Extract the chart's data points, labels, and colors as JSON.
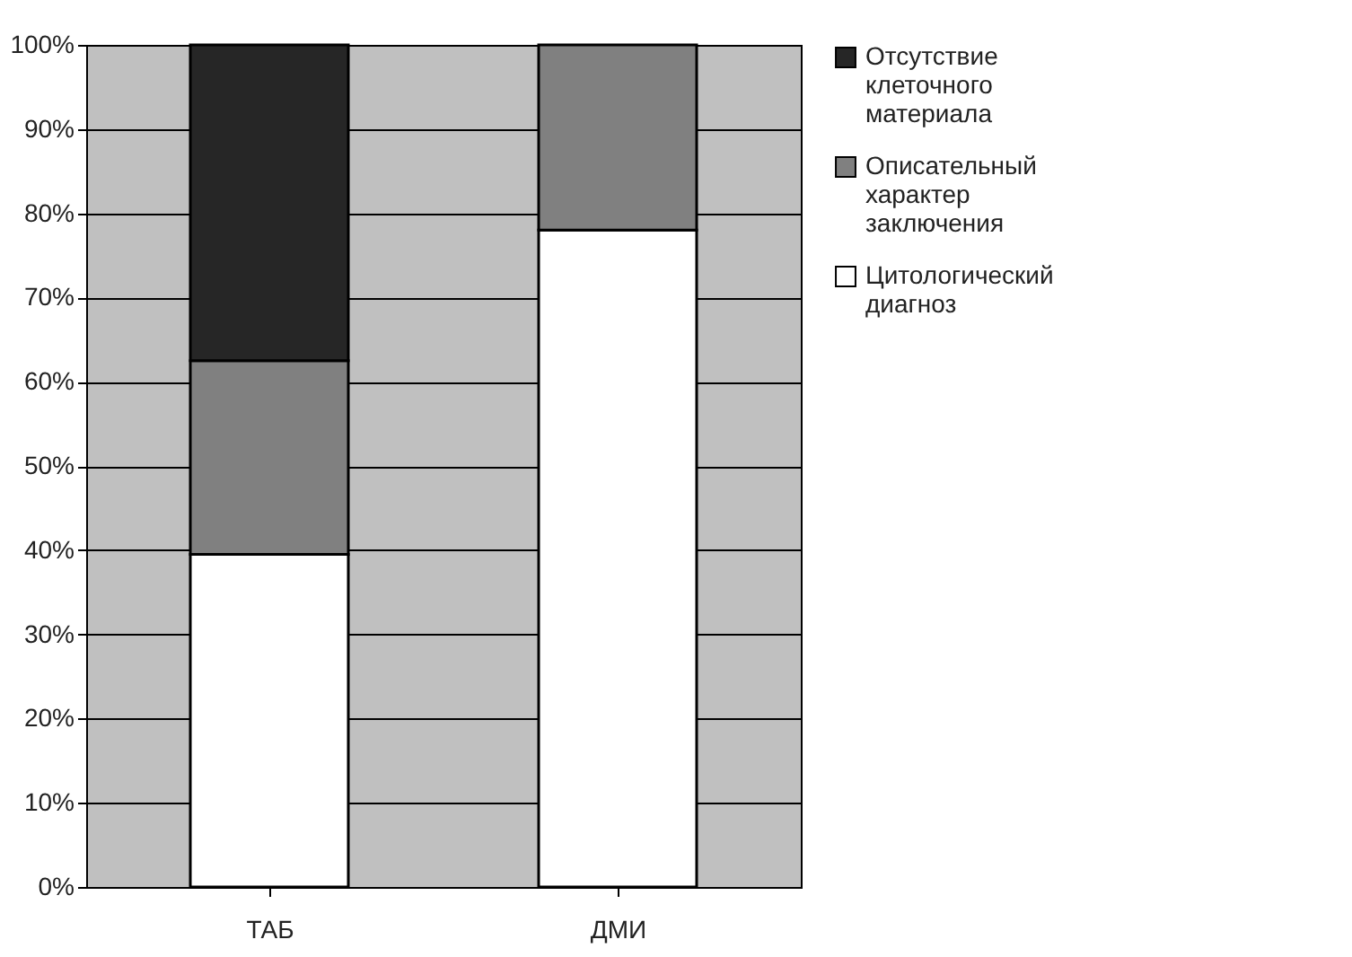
{
  "chart_data": {
    "type": "bar",
    "stacked": true,
    "categories": [
      "ТАБ",
      "ДМИ"
    ],
    "series": [
      {
        "name": "Цитологический диагноз",
        "color": "#ffffff",
        "values": [
          39.5,
          78
        ]
      },
      {
        "name": "Описательный характер заключения",
        "color": "#808080",
        "values": [
          23,
          22
        ]
      },
      {
        "name": "Отсутствие клеточного материала",
        "color": "#262626",
        "values": [
          37.5,
          null
        ]
      }
    ],
    "ylim": [
      0,
      100
    ],
    "yticks": [
      {
        "value": 0,
        "label": "0%"
      },
      {
        "value": 10,
        "label": "10%"
      },
      {
        "value": 20,
        "label": "20%"
      },
      {
        "value": 30,
        "label": "30%"
      },
      {
        "value": 40,
        "label": "40%"
      },
      {
        "value": 50,
        "label": "50%"
      },
      {
        "value": 60,
        "label": "60%"
      },
      {
        "value": 70,
        "label": "70%"
      },
      {
        "value": 80,
        "label": "80%"
      },
      {
        "value": 90,
        "label": "90%"
      },
      {
        "value": 100,
        "label": "100%"
      }
    ],
    "grid": "y",
    "legend": "right"
  }
}
